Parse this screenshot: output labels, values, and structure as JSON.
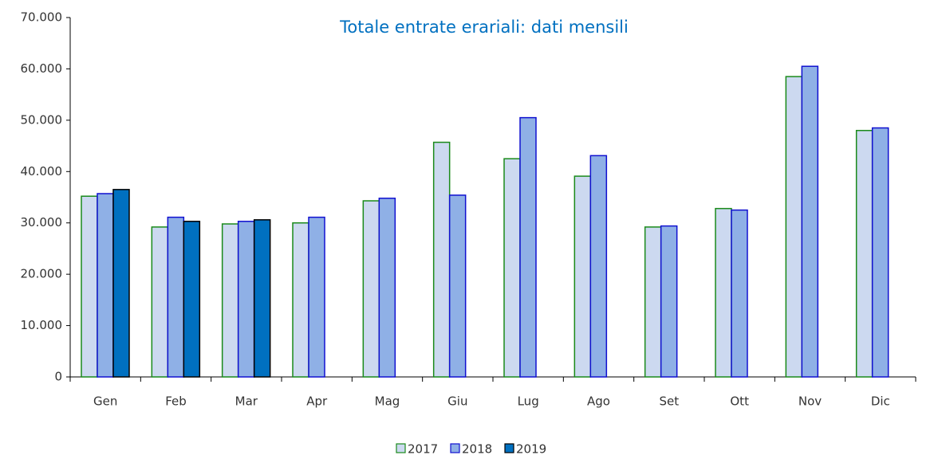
{
  "chart_data": {
    "type": "bar",
    "title": "Totale entrate erariali: dati mensili",
    "categories": [
      "Gen",
      "Feb",
      "Mar",
      "Apr",
      "Mag",
      "Giu",
      "Lug",
      "Ago",
      "Set",
      "Ott",
      "Nov",
      "Dic"
    ],
    "series": [
      {
        "name": "2017",
        "color": "#ccd9f0",
        "edgecolor": "#1a8a1a",
        "values": [
          35200,
          29200,
          29800,
          30000,
          34300,
          45700,
          42500,
          39100,
          29200,
          32800,
          58500,
          48000
        ]
      },
      {
        "name": "2018",
        "color": "#8fb0e6",
        "edgecolor": "#1010d0",
        "values": [
          35700,
          31100,
          30300,
          31100,
          34800,
          35400,
          50500,
          43100,
          29400,
          32500,
          60500,
          48500
        ]
      },
      {
        "name": "2019",
        "color": "#0070c0",
        "edgecolor": "#000000",
        "values": [
          36500,
          30300,
          30600,
          null,
          null,
          null,
          null,
          null,
          null,
          null,
          null,
          null
        ]
      }
    ],
    "ylim": [
      0,
      70000
    ],
    "yticks": [
      0,
      {
        "value": 10000,
        "label": "10.000"
      },
      {
        "value": 20000,
        "label": "20.000"
      },
      {
        "value": 30000,
        "label": "30.000"
      },
      {
        "value": 40000,
        "label": "40.000"
      },
      {
        "value": 50000,
        "label": "50.000"
      },
      {
        "value": 60000,
        "label": "60.000"
      },
      {
        "value": 70000,
        "label": "70.000"
      }
    ],
    "grid": false,
    "legend": "bottom"
  }
}
